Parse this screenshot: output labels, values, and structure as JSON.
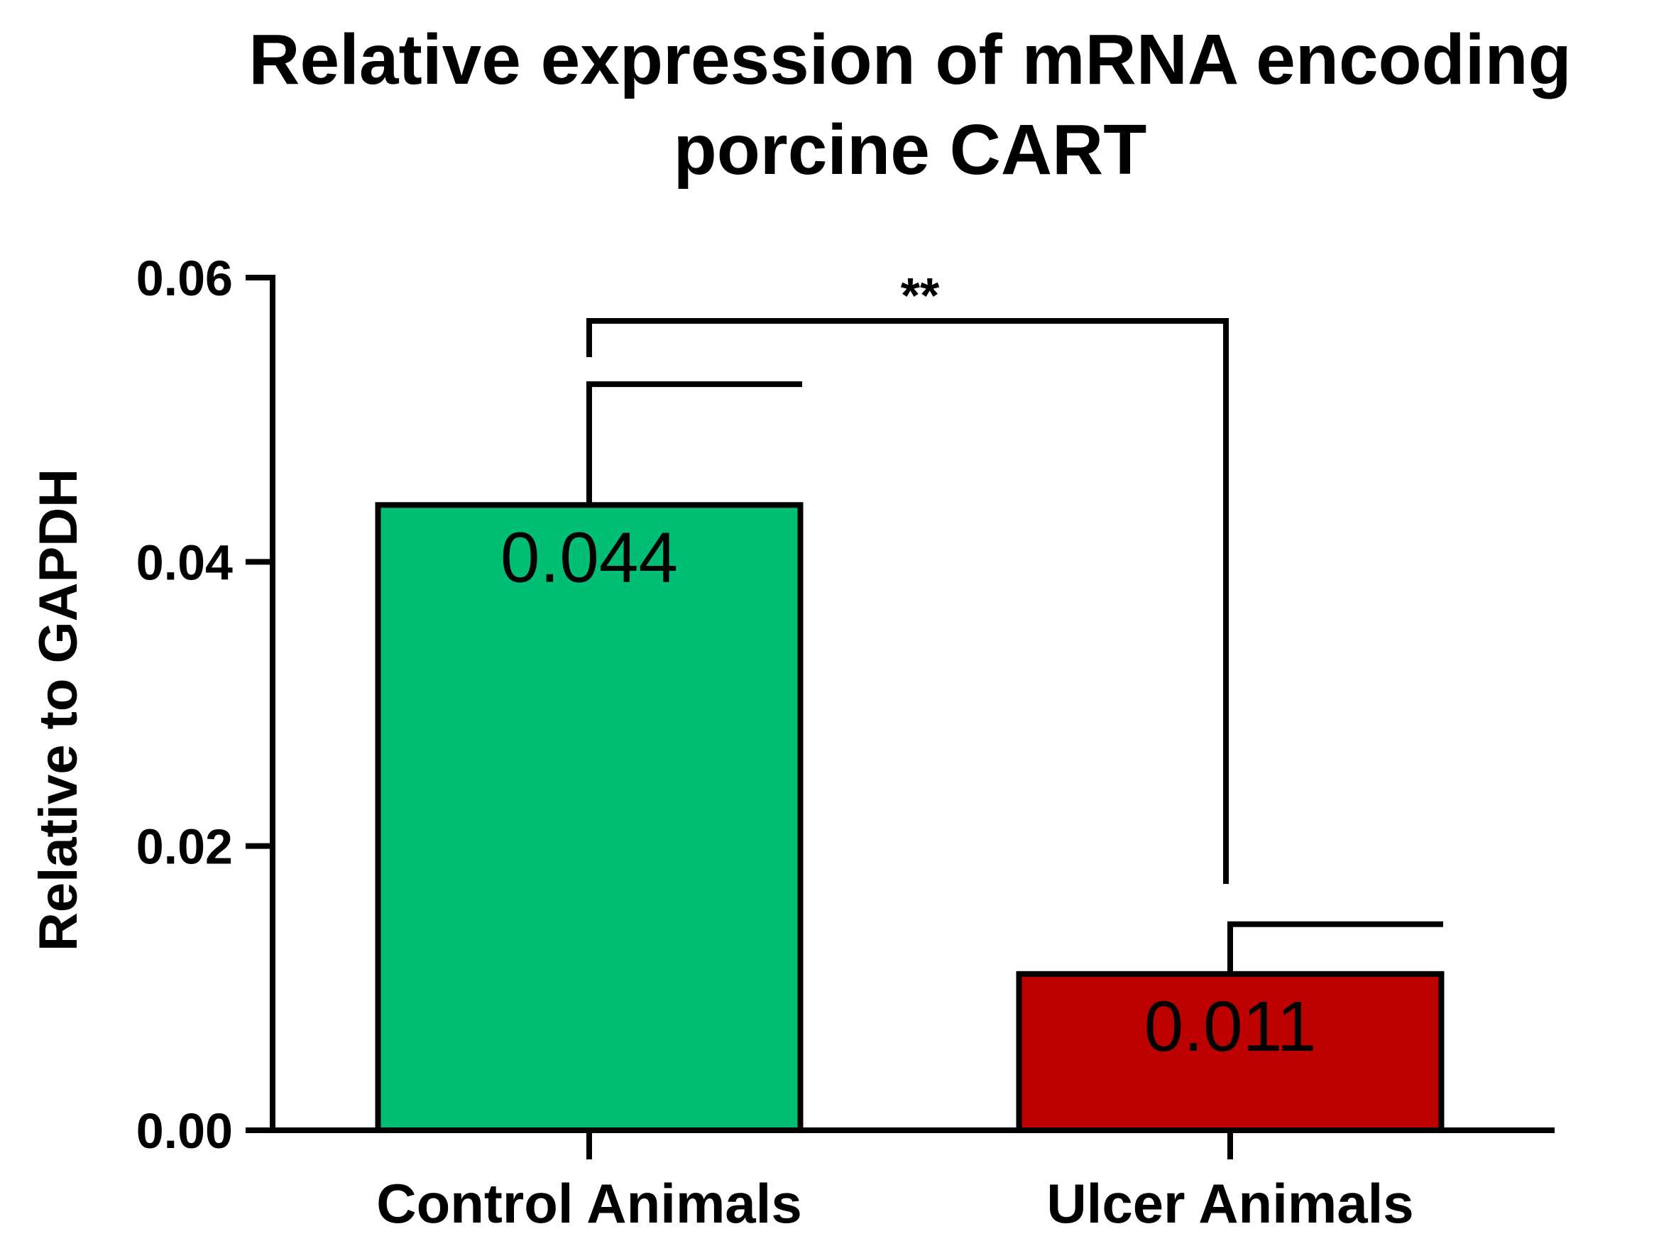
{
  "chart_data": {
    "type": "bar",
    "title": [
      "Relative expression of mRNA encoding",
      "porcine CART"
    ],
    "xlabel": "",
    "ylabel": "Relative to GAPDH",
    "ylim": [
      0,
      0.06
    ],
    "yticks": [
      0.0,
      0.02,
      0.04,
      0.06
    ],
    "ytick_labels": [
      "0.00",
      "0.02",
      "0.04",
      "0.06"
    ],
    "categories": [
      "Control Animals",
      "Ulcer Animals"
    ],
    "values": [
      0.044,
      0.011
    ],
    "error_upper": [
      0.0525,
      0.0145
    ],
    "data_labels": [
      "0.044",
      "0.011"
    ],
    "colors": [
      "#00bf74",
      "#bd0000"
    ],
    "significance": {
      "label": "**",
      "between": [
        0,
        1
      ]
    }
  }
}
